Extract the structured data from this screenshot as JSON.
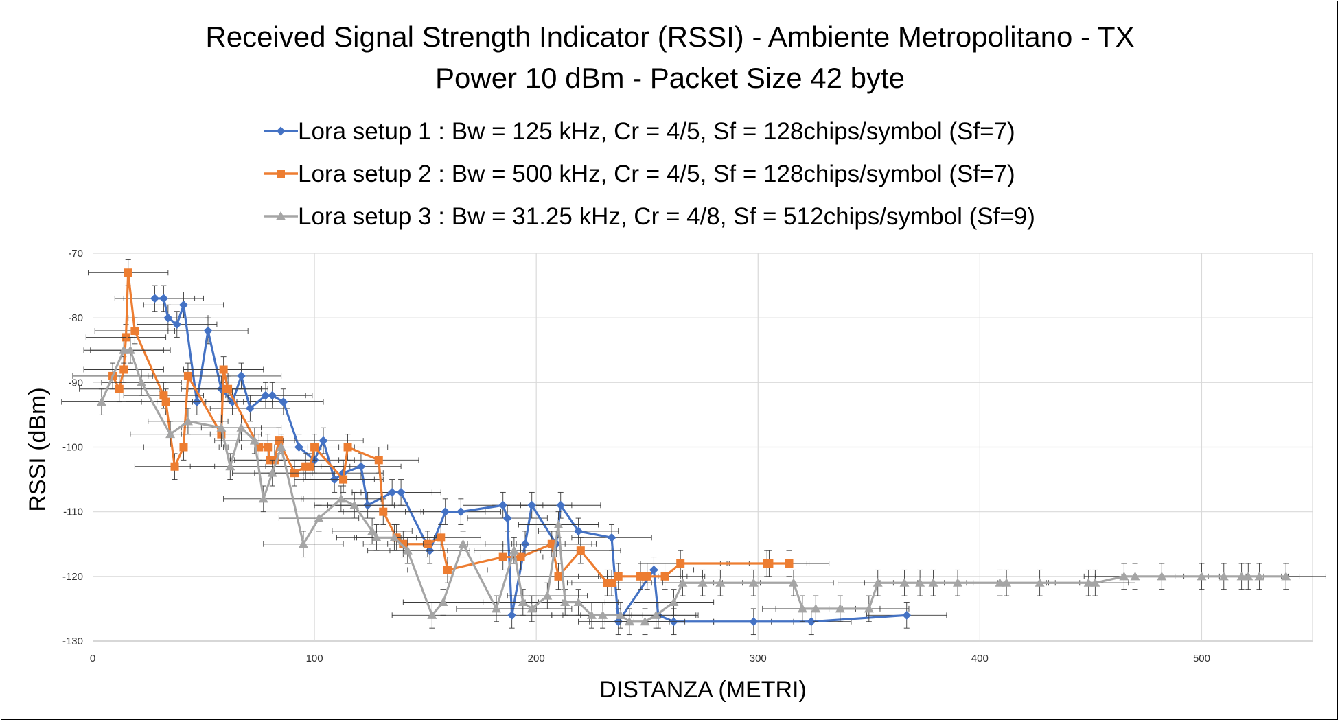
{
  "chart_data": {
    "type": "scatter",
    "title": "Received Signal Strength Indicator (RSSI) - Ambiente Metropolitano - TX Power 10 dBm - Packet Size 42 byte",
    "title_lines": [
      "Received Signal Strength Indicator (RSSI) - Ambiente Metropolitano - TX",
      "Power 10 dBm - Packet Size 42 byte"
    ],
    "xlabel": "DISTANZA (METRI)",
    "ylabel": "RSSI (dBm)",
    "xlim": [
      0,
      550
    ],
    "ylim": [
      -130,
      -70
    ],
    "x_ticks": [
      0,
      100,
      200,
      300,
      400,
      500
    ],
    "y_ticks": [
      -70,
      -80,
      -90,
      -100,
      -110,
      -120,
      -130
    ],
    "grid": true,
    "legend_position": "top",
    "error_bars": "horizontal and vertical on every point",
    "series": [
      {
        "name": "Lora setup 1 : Bw = 125 kHz, Cr = 4/5, Sf = 128chips/symbol (Sf=7)",
        "color": "#4472C4",
        "marker": "diamond",
        "x": [
          28,
          32,
          34,
          38,
          41,
          47,
          52,
          58,
          63,
          67,
          71,
          78,
          81,
          86,
          93,
          100,
          104,
          109,
          113,
          121,
          124,
          135,
          139,
          152,
          159,
          166,
          185,
          187,
          189,
          195,
          198,
          209,
          211,
          219,
          234,
          237,
          253,
          255,
          262,
          298,
          324,
          367
        ],
        "y": [
          -77,
          -77,
          -80,
          -81,
          -78,
          -93,
          -82,
          -91,
          -93,
          -89,
          -94,
          -92,
          -92,
          -93,
          -100,
          -102,
          -99,
          -105,
          -104,
          -103,
          -109,
          -107,
          -107,
          -116,
          -110,
          -110,
          -109,
          -111,
          -126,
          -115,
          -109,
          -115,
          -109,
          -113,
          -114,
          -127,
          -119,
          -126,
          -127,
          -127,
          -127,
          -126
        ]
      },
      {
        "name": "Lora setup 2 : Bw = 500 kHz, Cr = 4/5, Sf = 128chips/symbol (Sf=7)",
        "color": "#ED7D31",
        "marker": "square",
        "x": [
          9,
          12,
          14,
          15,
          16,
          19,
          32,
          33,
          37,
          41,
          43,
          58,
          59,
          61,
          75,
          79,
          80,
          82,
          84,
          91,
          96,
          98,
          100,
          113,
          115,
          129,
          131,
          137,
          140,
          151,
          157,
          160,
          185,
          193,
          207,
          210,
          220,
          232,
          234,
          237,
          247,
          250,
          258,
          265,
          304,
          305,
          314
        ],
        "y": [
          -89,
          -91,
          -88,
          -83,
          -73,
          -82,
          -92,
          -93,
          -103,
          -100,
          -89,
          -98,
          -88,
          -91,
          -100,
          -100,
          -102,
          -102,
          -99,
          -104,
          -103,
          -103,
          -100,
          -105,
          -100,
          -102,
          -110,
          -114,
          -115,
          -115,
          -114,
          -119,
          -117,
          -117,
          -115,
          -120,
          -116,
          -121,
          -121,
          -120,
          -120,
          -120,
          -120,
          -118,
          -118,
          -118,
          -118
        ]
      },
      {
        "name": "Lora setup 3 : Bw = 31.25 kHz, Cr = 4/8, Sf = 512chips/symbol (Sf=9)",
        "color": "#A5A5A5",
        "marker": "triangle",
        "x": [
          4,
          14,
          17,
          22,
          35,
          43,
          58,
          62,
          67,
          73,
          77,
          81,
          85,
          95,
          102,
          112,
          118,
          126,
          128,
          136,
          142,
          153,
          158,
          167,
          182,
          190,
          194,
          198,
          205,
          210,
          213,
          219,
          225,
          230,
          238,
          242,
          249,
          254,
          262,
          266,
          275,
          283,
          298,
          316,
          320,
          326,
          337,
          350,
          354,
          366,
          373,
          379,
          390,
          409,
          412,
          427,
          449,
          452,
          465,
          470,
          482,
          500,
          510,
          518,
          521,
          526,
          538
        ],
        "y": [
          -93,
          -85,
          -85,
          -90,
          -98,
          -96,
          -97,
          -103,
          -97,
          -99,
          -108,
          -104,
          -100,
          -115,
          -111,
          -108,
          -109,
          -113,
          -114,
          -114,
          -116,
          -126,
          -124,
          -115,
          -125,
          -116,
          -124,
          -125,
          -123,
          -112,
          -124,
          -124,
          -126,
          -126,
          -126,
          -127,
          -127,
          -126,
          -124,
          -121,
          -121,
          -121,
          -121,
          -121,
          -125,
          -125,
          -125,
          -125,
          -121,
          -121,
          -121,
          -121,
          -121,
          -121,
          -121,
          -121,
          -121,
          -121,
          -120,
          -120,
          -120,
          -120,
          -120,
          -120,
          -120,
          -120,
          -120
        ]
      }
    ]
  }
}
